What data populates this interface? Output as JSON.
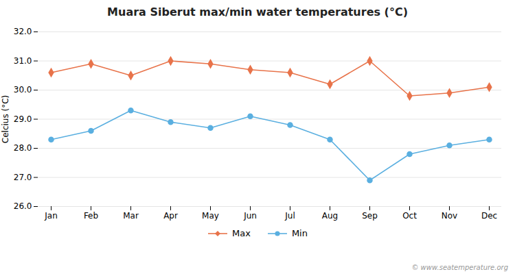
{
  "chart_data": {
    "type": "line",
    "title": "Muara Siberut max/min water temperatures (°C)",
    "ylabel": "Celcius (°C)",
    "categories": [
      "Jan",
      "Feb",
      "Mar",
      "Apr",
      "May",
      "Jun",
      "Jul",
      "Aug",
      "Sep",
      "Oct",
      "Nov",
      "Dec"
    ],
    "series": [
      {
        "name": "Max",
        "color": "#e8734a",
        "marker": "diamond",
        "values": [
          30.6,
          30.9,
          30.5,
          31.0,
          30.9,
          30.7,
          30.6,
          30.2,
          31.0,
          29.8,
          29.9,
          30.1
        ]
      },
      {
        "name": "Min",
        "color": "#5aafe0",
        "marker": "circle",
        "values": [
          28.3,
          28.6,
          29.3,
          28.9,
          28.7,
          29.1,
          28.8,
          28.3,
          26.9,
          27.8,
          28.1,
          28.3
        ]
      }
    ],
    "ylim": [
      26,
      32
    ],
    "yticks": [
      26,
      27,
      28,
      29,
      30,
      31,
      32
    ],
    "grid": true,
    "legend": "bottom",
    "annotations": [
      "© www.seatemperature.org"
    ]
  }
}
